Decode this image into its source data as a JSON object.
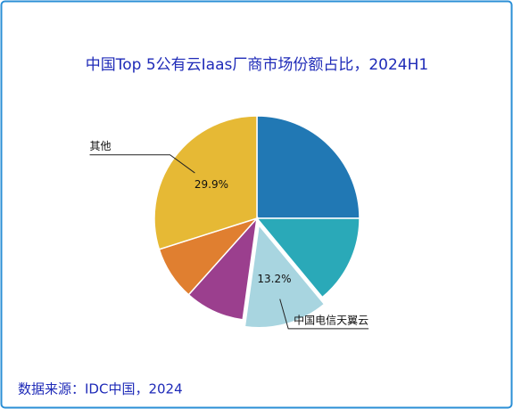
{
  "chart_data": {
    "type": "pie",
    "title": "中国Top 5公有云Iaas厂商市场份额占比，2024H1",
    "source": "数据来源：IDC中国，2024",
    "categories": [
      null,
      null,
      "中国电信天翼云",
      null,
      null,
      "其他"
    ],
    "values": [
      25,
      14,
      13.2,
      9.4,
      8.5,
      29.9
    ],
    "value_labels": [
      null,
      null,
      "13.2%",
      null,
      null,
      "29.9%"
    ],
    "colors": [
      "#2178b4",
      "#2aa9b8",
      "#a8d5e0",
      "#9b3f8e",
      "#e07f30",
      "#e6b935"
    ],
    "exploded": [
      false,
      false,
      true,
      false,
      false,
      false
    ]
  }
}
